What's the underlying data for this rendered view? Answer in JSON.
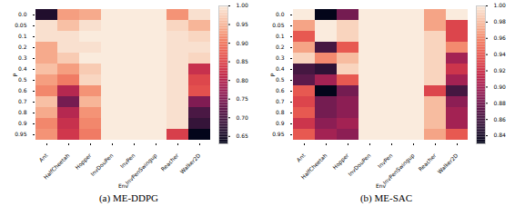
{
  "chart_data": [
    {
      "type": "heatmap",
      "title": "(a) ME-DDPG",
      "x_label": "Env",
      "y_label": "P",
      "x": [
        "Ant",
        "HalfCheetah",
        "Hopper",
        "InvDouPen",
        "InvPen",
        "InvPenSwingup",
        "Reacher",
        "Walker2D"
      ],
      "y": [
        "0.0",
        "0.05",
        "0.1",
        "0.2",
        "0.3",
        "0.4",
        "0.5",
        "0.6",
        "0.7",
        "0.8",
        "0.9",
        "0.95"
      ],
      "values": [
        [
          0.66,
          0.93,
          0.94,
          1.0,
          1.0,
          1.0,
          0.92,
          0.99
        ],
        [
          0.99,
          0.96,
          0.99,
          1.0,
          1.0,
          1.0,
          0.98,
          0.95
        ],
        [
          0.99,
          0.99,
          1.0,
          1.0,
          1.0,
          1.0,
          0.99,
          0.98
        ],
        [
          0.94,
          0.99,
          0.99,
          1.0,
          1.0,
          1.0,
          0.99,
          0.99
        ],
        [
          0.94,
          0.97,
          1.0,
          1.0,
          1.0,
          1.0,
          0.99,
          0.98
        ],
        [
          0.96,
          0.93,
          0.97,
          1.0,
          1.0,
          1.0,
          0.99,
          0.82
        ],
        [
          0.93,
          0.9,
          0.98,
          1.0,
          1.0,
          1.0,
          0.99,
          0.85
        ],
        [
          0.91,
          0.8,
          0.92,
          1.0,
          1.0,
          1.0,
          0.99,
          0.86
        ],
        [
          0.96,
          0.74,
          0.95,
          1.0,
          1.0,
          1.0,
          0.99,
          0.75
        ],
        [
          0.94,
          0.8,
          0.92,
          1.0,
          1.0,
          1.0,
          0.99,
          0.7
        ],
        [
          0.91,
          0.82,
          0.91,
          1.0,
          1.0,
          1.0,
          0.99,
          0.68
        ],
        [
          0.92,
          0.83,
          0.9,
          1.0,
          1.0,
          1.0,
          0.84,
          0.63
        ]
      ],
      "colorbar": {
        "range": [
          0.63,
          1.0
        ],
        "ticks": [
          0.65,
          {
            "value": 0.7,
            "label": "0.70"
          },
          0.75,
          {
            "value": 0.8,
            "label": "0.80"
          },
          0.85,
          {
            "value": 0.9,
            "label": "0.90"
          },
          0.95,
          {
            "value": 1.0,
            "label": "1.00"
          }
        ]
      }
    },
    {
      "type": "heatmap",
      "title": "(b) ME-SAC",
      "x_label": "Env",
      "y_label": "P",
      "x": [
        "Ant",
        "HalfCheetah",
        "Hopper",
        "InvDouPen",
        "InvPen",
        "InvPenSwingup",
        "Reacher",
        "Walker2D"
      ],
      "y": [
        "0.0",
        "0.05",
        "0.1",
        "0.2",
        "0.3",
        "0.4",
        "0.5",
        "0.6",
        "0.7",
        "0.8",
        "0.9",
        "0.95"
      ],
      "values": [
        [
          1.0,
          0.83,
          0.88,
          1.0,
          1.0,
          1.0,
          0.97,
          1.0
        ],
        [
          0.97,
          1.0,
          0.99,
          1.0,
          1.0,
          1.0,
          0.97,
          0.93
        ],
        [
          0.94,
          1.0,
          0.99,
          1.0,
          1.0,
          1.0,
          0.99,
          0.93
        ],
        [
          0.97,
          0.86,
          0.94,
          1.0,
          1.0,
          1.0,
          0.99,
          0.96
        ],
        [
          0.99,
          0.96,
          0.98,
          1.0,
          1.0,
          1.0,
          0.99,
          0.9
        ],
        [
          0.86,
          0.85,
          0.99,
          1.0,
          1.0,
          1.0,
          0.99,
          0.92
        ],
        [
          0.87,
          0.9,
          0.94,
          1.0,
          1.0,
          1.0,
          0.99,
          0.9
        ],
        [
          0.94,
          0.83,
          0.88,
          1.0,
          1.0,
          1.0,
          0.93,
          0.86
        ],
        [
          0.93,
          0.88,
          0.89,
          1.0,
          1.0,
          1.0,
          0.98,
          0.89
        ],
        [
          0.94,
          0.88,
          0.89,
          1.0,
          1.0,
          1.0,
          0.98,
          0.9
        ],
        [
          0.92,
          0.89,
          0.9,
          1.0,
          1.0,
          1.0,
          0.98,
          0.9
        ],
        [
          0.94,
          0.9,
          0.89,
          1.0,
          1.0,
          1.0,
          0.97,
          0.94
        ]
      ],
      "colorbar": {
        "range": [
          0.83,
          1.0
        ],
        "ticks": [
          0.84,
          0.86,
          0.88,
          {
            "value": 0.9,
            "label": "0.90"
          },
          0.92,
          0.94,
          0.96,
          0.98,
          {
            "value": 1.0,
            "label": "1.00"
          }
        ]
      }
    }
  ]
}
